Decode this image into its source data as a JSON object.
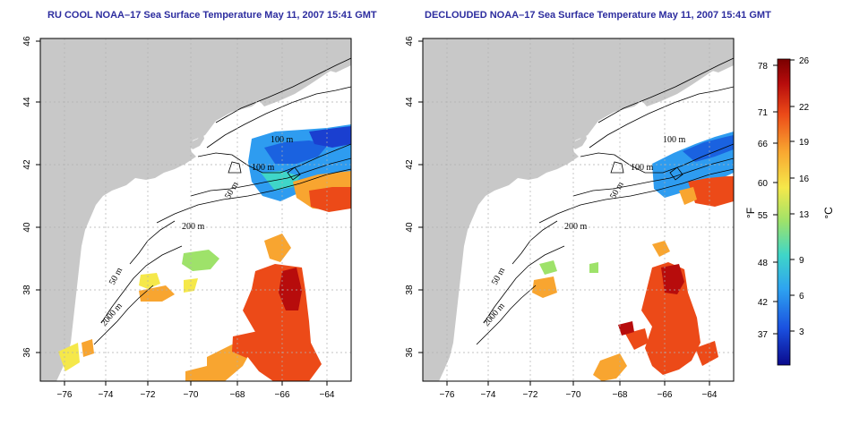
{
  "titles": {
    "left": "RU COOL NOAA–17 Sea Surface Temperature May 11, 2007 15:41 GMT",
    "right": "DECLOUDED NOAA–17 Sea Surface Temperature May 11, 2007 15:41 GMT"
  },
  "axes": {
    "lon_ticks": [
      "−76",
      "−74",
      "−72",
      "−70",
      "−68",
      "−66",
      "−64"
    ],
    "lat_ticks": [
      "46",
      "44",
      "42",
      "40",
      "38",
      "36"
    ],
    "lon_range": [
      -77,
      -63
    ],
    "lat_range": [
      35,
      46
    ]
  },
  "contour_labels": {
    "left": [
      "100 m",
      "100 m",
      "50 m",
      "200 m",
      "50 m",
      "2000 m"
    ],
    "right": [
      "100 m",
      "100 m",
      "50 m",
      "200 m",
      "50 m",
      "2000 m"
    ]
  },
  "colorbar": {
    "fahrenheit_unit": "°F",
    "celsius_unit": "°C",
    "fahrenheit_ticks": [
      "78",
      "71",
      "66",
      "60",
      "55",
      "48",
      "42",
      "37"
    ],
    "celsius_ticks": [
      "26",
      "22",
      "19",
      "16",
      "13",
      "9",
      "6",
      "3"
    ],
    "colors": [
      "#0a0a8c",
      "#1a50e0",
      "#2ea4f0",
      "#3fd6c8",
      "#9ee26a",
      "#f5e84a",
      "#f8a530",
      "#ec4a18",
      "#b70c0c",
      "#7a0000"
    ]
  },
  "colors": {
    "land": "#c8c8c8",
    "frame": "#000000",
    "title": "#2d2d9f",
    "grid": "#b0b0b0"
  }
}
